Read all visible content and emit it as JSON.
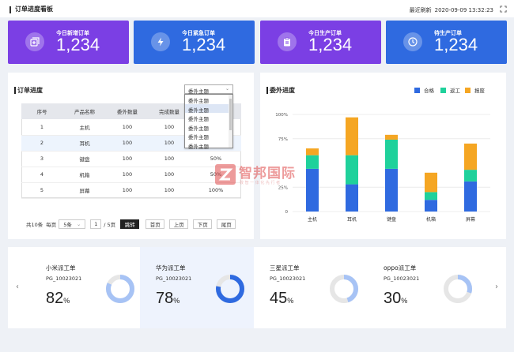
{
  "header": {
    "title": "订单进度看板",
    "refresh_label": "最近刷新",
    "refresh_time": "2020-09-09  13:32:23"
  },
  "kpis": [
    {
      "label": "今日新增订单",
      "value": "1,234",
      "color": "#7b3fe4",
      "icon": "add-box-icon"
    },
    {
      "label": "今日紧急订单",
      "value": "1,234",
      "color": "#2f6ae0",
      "icon": "lightning-icon"
    },
    {
      "label": "今日生产订单",
      "value": "1,234",
      "color": "#7b3fe4",
      "icon": "clipboard-icon"
    },
    {
      "label": "待生产订单",
      "value": "1,234",
      "color": "#2f6ae0",
      "icon": "clock-icon"
    }
  ],
  "order_progress": {
    "title": "订单进度",
    "theme_select": {
      "selected": "委外主题",
      "options": [
        "委外主题",
        "委外主题",
        "委外主题",
        "委外主题",
        "委外主题",
        "委外主题"
      ],
      "highlighted_index": 1
    },
    "columns": [
      "序号",
      "产品名称",
      "委外数量",
      "完成数量",
      ""
    ],
    "rows": [
      [
        "1",
        "主机",
        "100",
        "100",
        ""
      ],
      [
        "2",
        "耳机",
        "100",
        "100",
        ""
      ],
      [
        "3",
        "键盘",
        "100",
        "100",
        "50%"
      ],
      [
        "4",
        "机箱",
        "100",
        "100",
        "50%"
      ],
      [
        "5",
        "屏幕",
        "100",
        "100",
        "100%"
      ]
    ],
    "selected_row": 1,
    "pagination": {
      "total": "共10条",
      "per_page_label": "每页",
      "per_page": "5条",
      "current_page": "1",
      "total_pages": "/ 5页",
      "jump": "跳转",
      "first": "首页",
      "prev": "上页",
      "next": "下页",
      "last": "尾页"
    }
  },
  "outsourcing": {
    "title": "委外进度",
    "legend": [
      {
        "name": "合格",
        "color": "#2f6ae0"
      },
      {
        "name": "返工",
        "color": "#1fd19b"
      },
      {
        "name": "报废",
        "color": "#f5a623"
      }
    ]
  },
  "chart_data": {
    "type": "bar",
    "stacked": true,
    "categories": [
      "主机",
      "耳机",
      "键盘",
      "机箱",
      "屏幕"
    ],
    "series": [
      {
        "name": "合格",
        "color": "#2f6ae0",
        "values": [
          44,
          28,
          44,
          12,
          31
        ]
      },
      {
        "name": "返工",
        "color": "#1fd19b",
        "values": [
          14,
          30,
          30,
          8,
          12
        ]
      },
      {
        "name": "报废",
        "color": "#f5a623",
        "values": [
          7,
          39,
          5,
          20,
          27
        ]
      }
    ],
    "ylim": [
      0,
      100
    ],
    "yticks": [
      "0",
      "25%",
      "75%",
      "100%"
    ],
    "ytick_values": [
      0,
      25,
      75,
      100
    ],
    "grid": true,
    "legend_position": "top-right"
  },
  "watermark": {
    "name": "智邦国际",
    "tagline": "致 智 一 体 化 先 行 者"
  },
  "work_orders": [
    {
      "name": "小米派工单",
      "code": "PG_10023021",
      "percent": "82",
      "fraction": 0.82,
      "color": "#a7c3f5",
      "highlight": false
    },
    {
      "name": "华为派工单",
      "code": "PG_10023021",
      "percent": "78",
      "fraction": 0.78,
      "color": "#2f6ae0",
      "highlight": true
    },
    {
      "name": "三星派工单",
      "code": "PG_10023021",
      "percent": "45",
      "fraction": 0.45,
      "color": "#a7c3f5",
      "highlight": false
    },
    {
      "name": "oppo派工单",
      "code": "PG_10023021",
      "percent": "30",
      "fraction": 0.3,
      "color": "#a7c3f5",
      "highlight": false
    }
  ],
  "percent_unit": "%"
}
